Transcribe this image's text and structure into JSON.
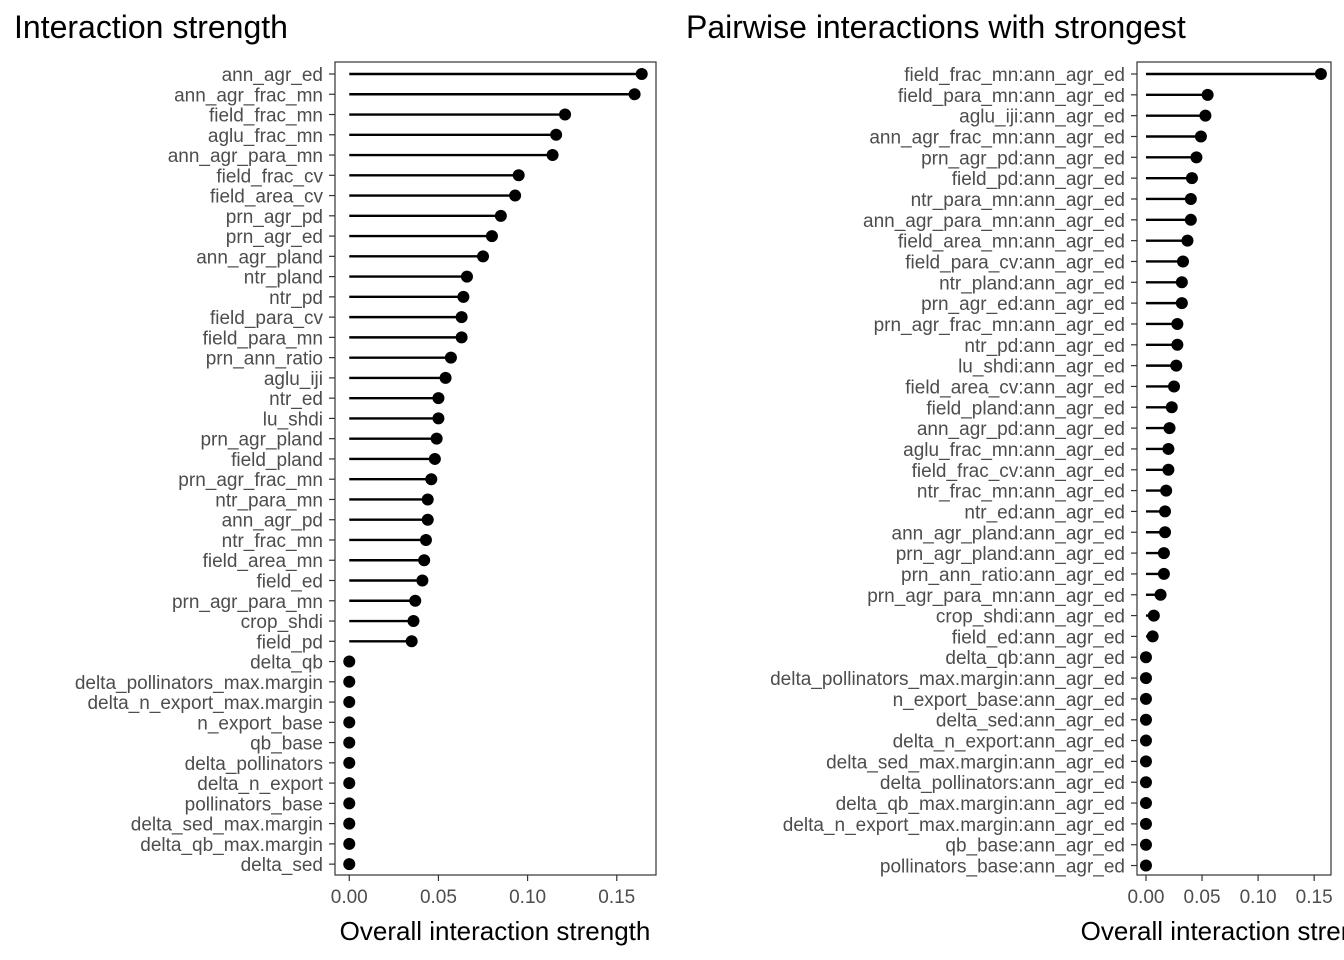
{
  "chart_data": [
    {
      "type": "lollipop",
      "title": "Interaction strength",
      "xlabel": "Overall interaction strength",
      "ylabel": "",
      "xlim": [
        -0.008,
        0.172
      ],
      "xticks": [
        "0.00",
        "0.05",
        "0.10",
        "0.15"
      ],
      "xtick_values": [
        0,
        0.05,
        0.1,
        0.15
      ],
      "grid": false,
      "color": "#000000",
      "categories": [
        "ann_agr_ed",
        "ann_agr_frac_mn",
        "field_frac_mn",
        "aglu_frac_mn",
        "ann_agr_para_mn",
        "field_frac_cv",
        "field_area_cv",
        "prn_agr_pd",
        "prn_agr_ed",
        "ann_agr_pland",
        "ntr_pland",
        "ntr_pd",
        "field_para_cv",
        "field_para_mn",
        "prn_ann_ratio",
        "aglu_iji",
        "ntr_ed",
        "lu_shdi",
        "prn_agr_pland",
        "field_pland",
        "prn_agr_frac_mn",
        "ntr_para_mn",
        "ann_agr_pd",
        "ntr_frac_mn",
        "field_area_mn",
        "field_ed",
        "prn_agr_para_mn",
        "crop_shdi",
        "field_pd",
        "delta_qb",
        "delta_pollinators_max.margin",
        "delta_n_export_max.margin",
        "n_export_base",
        "qb_base",
        "delta_pollinators",
        "delta_n_export",
        "pollinators_base",
        "delta_sed_max.margin",
        "delta_qb_max.margin",
        "delta_sed"
      ],
      "values": [
        0.164,
        0.16,
        0.121,
        0.116,
        0.114,
        0.095,
        0.093,
        0.085,
        0.08,
        0.075,
        0.066,
        0.064,
        0.063,
        0.063,
        0.057,
        0.054,
        0.05,
        0.05,
        0.049,
        0.048,
        0.046,
        0.044,
        0.044,
        0.043,
        0.042,
        0.041,
        0.037,
        0.036,
        0.035,
        0,
        0,
        0,
        0,
        0,
        0,
        0,
        0,
        0,
        0,
        0
      ]
    },
    {
      "type": "lollipop",
      "title": "Pairwise interactions with strongest",
      "xlabel": "Overall interaction strength",
      "ylabel": "",
      "xlim": [
        -0.008,
        0.165
      ],
      "xticks": [
        "0.00",
        "0.05",
        "0.10",
        "0.15"
      ],
      "xtick_values": [
        0,
        0.05,
        0.1,
        0.15
      ],
      "grid": false,
      "color": "#000000",
      "categories": [
        "field_frac_mn:ann_agr_ed",
        "field_para_mn:ann_agr_ed",
        "aglu_iji:ann_agr_ed",
        "ann_agr_frac_mn:ann_agr_ed",
        "prn_agr_pd:ann_agr_ed",
        "field_pd:ann_agr_ed",
        "ntr_para_mn:ann_agr_ed",
        "ann_agr_para_mn:ann_agr_ed",
        "field_area_mn:ann_agr_ed",
        "field_para_cv:ann_agr_ed",
        "ntr_pland:ann_agr_ed",
        "prn_agr_ed:ann_agr_ed",
        "prn_agr_frac_mn:ann_agr_ed",
        "ntr_pd:ann_agr_ed",
        "lu_shdi:ann_agr_ed",
        "field_area_cv:ann_agr_ed",
        "field_pland:ann_agr_ed",
        "ann_agr_pd:ann_agr_ed",
        "aglu_frac_mn:ann_agr_ed",
        "field_frac_cv:ann_agr_ed",
        "ntr_frac_mn:ann_agr_ed",
        "ntr_ed:ann_agr_ed",
        "ann_agr_pland:ann_agr_ed",
        "prn_agr_pland:ann_agr_ed",
        "prn_ann_ratio:ann_agr_ed",
        "prn_agr_para_mn:ann_agr_ed",
        "crop_shdi:ann_agr_ed",
        "field_ed:ann_agr_ed",
        "delta_qb:ann_agr_ed",
        "delta_pollinators_max.margin:ann_agr_ed",
        "n_export_base:ann_agr_ed",
        "delta_sed:ann_agr_ed",
        "delta_n_export:ann_agr_ed",
        "delta_sed_max.margin:ann_agr_ed",
        "delta_pollinators:ann_agr_ed",
        "delta_qb_max.margin:ann_agr_ed",
        "delta_n_export_max.margin:ann_agr_ed",
        "qb_base:ann_agr_ed",
        "pollinators_base:ann_agr_ed"
      ],
      "values": [
        0.156,
        0.055,
        0.053,
        0.049,
        0.045,
        0.041,
        0.04,
        0.04,
        0.037,
        0.033,
        0.032,
        0.032,
        0.028,
        0.028,
        0.027,
        0.025,
        0.023,
        0.021,
        0.02,
        0.02,
        0.018,
        0.017,
        0.017,
        0.016,
        0.016,
        0.013,
        0.007,
        0.006,
        0,
        0,
        0,
        0,
        0,
        0,
        0,
        0,
        0,
        0,
        0
      ]
    }
  ]
}
